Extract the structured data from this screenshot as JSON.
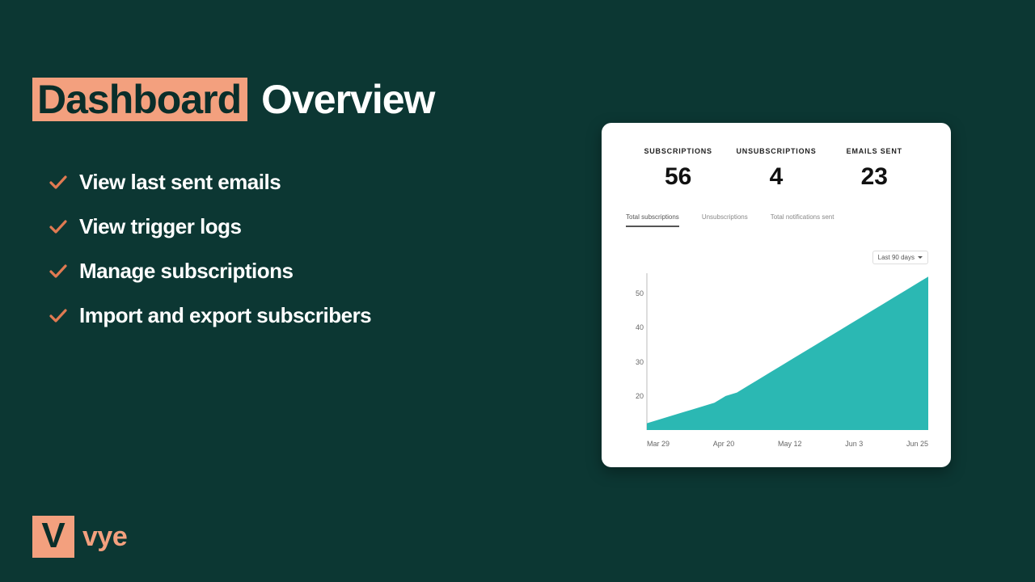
{
  "colors": {
    "background": "#0c3733",
    "accent": "#f3a07e",
    "white": "#ffffff",
    "chart_fill": "#2bb8b3",
    "text_dark": "#111111",
    "muted": "#888888"
  },
  "heading": {
    "highlight": "Dashboard",
    "rest": "Overview",
    "fontsize": 50
  },
  "bullets": [
    "View last sent emails",
    "View trigger logs",
    "Manage subscriptions",
    "Import and export subscribers"
  ],
  "logo": {
    "mark": "V",
    "text": "vye"
  },
  "dashboard": {
    "stats": [
      {
        "label": "SUBSCRIPTIONS",
        "value": "56"
      },
      {
        "label": "UNSUBSCRIPTIONS",
        "value": "4"
      },
      {
        "label": "EMAILS SENT",
        "value": "23"
      }
    ],
    "tabs": [
      {
        "label": "Total subscriptions",
        "active": true
      },
      {
        "label": "Unsubscriptions",
        "active": false
      },
      {
        "label": "Total notifications sent",
        "active": false
      }
    ],
    "range": "Last 90 days",
    "chart": {
      "type": "area",
      "fill_color": "#2bb8b3",
      "y_ticks": [
        20,
        30,
        40,
        50
      ],
      "ylim": [
        10,
        56
      ],
      "x_labels": [
        "Mar 29",
        "Apr 20",
        "May 12",
        "Jun 3",
        "Jun 25"
      ],
      "points": [
        [
          0,
          12
        ],
        [
          4,
          13
        ],
        [
          8,
          14
        ],
        [
          12,
          15
        ],
        [
          16,
          16
        ],
        [
          20,
          17
        ],
        [
          24,
          18
        ],
        [
          28,
          20
        ],
        [
          32,
          21
        ],
        [
          36,
          23
        ],
        [
          40,
          25
        ],
        [
          44,
          27
        ],
        [
          48,
          29
        ],
        [
          52,
          31
        ],
        [
          56,
          33
        ],
        [
          60,
          35
        ],
        [
          64,
          37
        ],
        [
          68,
          39
        ],
        [
          72,
          41
        ],
        [
          76,
          43
        ],
        [
          80,
          45
        ],
        [
          84,
          47
        ],
        [
          88,
          49
        ],
        [
          92,
          51
        ],
        [
          96,
          53
        ],
        [
          100,
          55
        ]
      ]
    }
  }
}
